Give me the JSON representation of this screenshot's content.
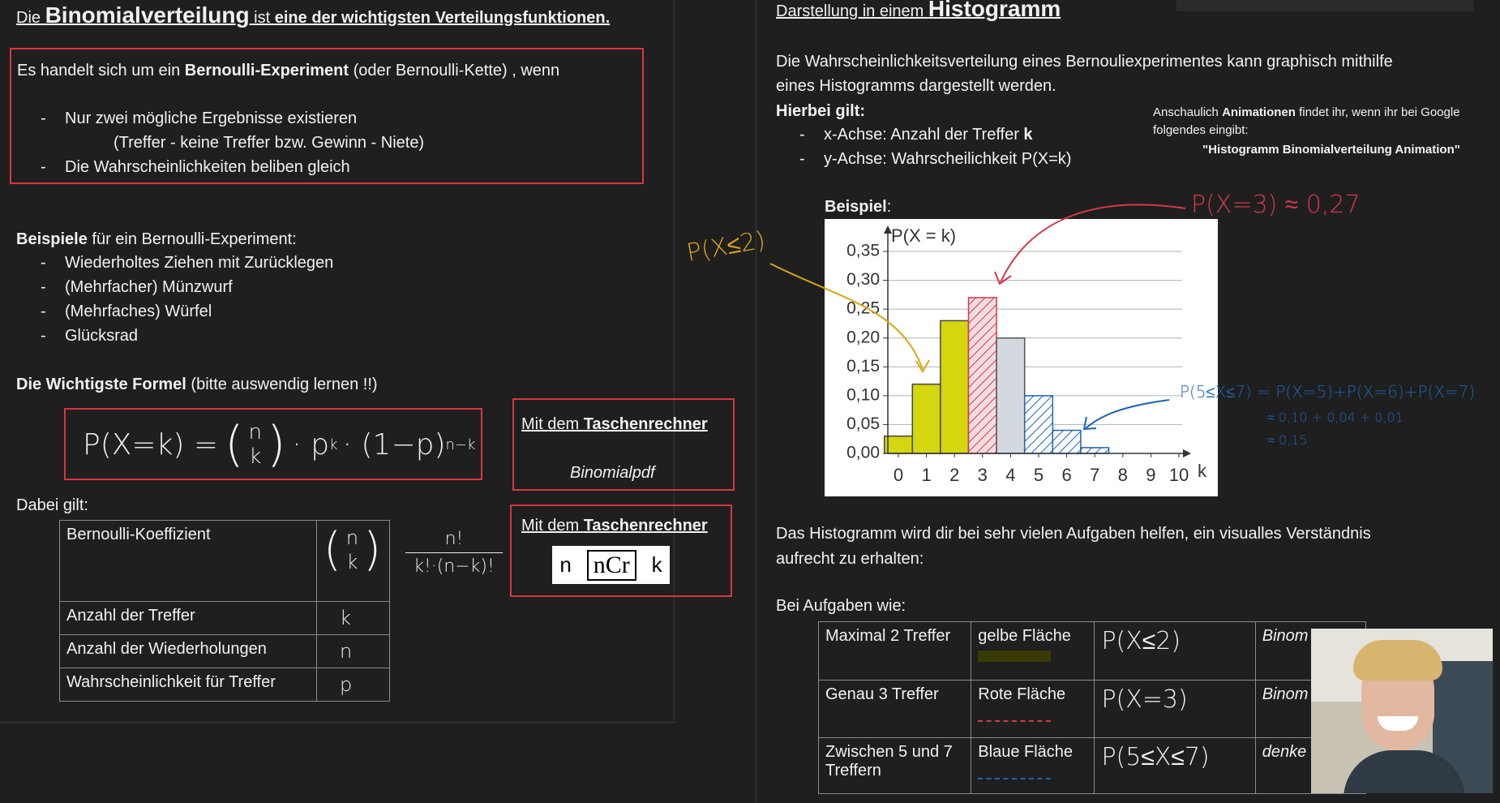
{
  "left": {
    "title": [
      "Die ",
      "Binomialverteilung",
      " ist ",
      "eine der wichtigsten Verteilungsfunktionen."
    ],
    "box": {
      "intro": [
        "Es handelt sich um ein ",
        "Bernoulli-Experiment",
        " (oder Bernoulli-Kette) , wenn"
      ],
      "bullets": [
        "Nur zwei mögliche Ergebnisse existieren",
        "(Treffer - keine Treffer bzw. Gewinn - Niete)",
        "Die Wahrscheinlichkeiten beliben gleich"
      ]
    },
    "examples": {
      "heading": [
        "Beispiele",
        " für ein Bernoulli-Experiment:"
      ],
      "items": [
        "Wiederholtes Ziehen mit Zurücklegen",
        "(Mehrfacher) Münzwurf",
        "(Mehrfaches) Würfel",
        "Glücksrad"
      ]
    },
    "formula_heading": [
      "Die Wichtigste Formel",
      " (bitte auswendig lernen !!)"
    ],
    "formula": {
      "lhs": "P(X=k) =",
      "binom": [
        "n",
        "k"
      ],
      "base": "· p",
      "exp1": "k",
      "factor": "· (1−p)",
      "exp2": "n−k"
    },
    "calc1": {
      "heading": [
        "Mit dem ",
        "Taschenrechner"
      ],
      "function": "Binomialpdf"
    },
    "calc2": {
      "heading": [
        "Mit dem ",
        "Taschenrechner"
      ],
      "keys": [
        "n",
        "nCr",
        "k"
      ]
    },
    "dabei": "Dabei gilt:",
    "table": {
      "rows": [
        {
          "label": "Bernoulli-Koeffizient",
          "symbol": [
            "n",
            "k"
          ]
        },
        {
          "label": "Anzahl der Treffer",
          "symbol": "k"
        },
        {
          "label": "Anzahl der Wiederholungen",
          "symbol": "n"
        },
        {
          "label": "Wahrscheinlichkeit für Treffer",
          "symbol": "p"
        }
      ]
    },
    "fraction": {
      "numerator": "n!",
      "denominator": "k!·(n−k)!"
    }
  },
  "right": {
    "title": [
      "Darstellung in einem ",
      "Histogramm"
    ],
    "paragraph": [
      "Die Wahrscheinlichkeitsverteilung eines Bernouliexperimentes kann graphisch mithilfe",
      "eines Histogramms dargestellt werden."
    ],
    "hierbei": "Hierbei gilt:",
    "bullets": [
      [
        "x-Achse: Anzahl der Treffer ",
        "k"
      ],
      [
        "y-Achse: Wahrscheilichkeit P(X=k)"
      ]
    ],
    "note": [
      "Anschaulich ",
      "Animationen",
      " findet ihr, wenn ihr bei Google",
      "folgendes eingibt:",
      "\"Histogramm Binomialverteilung Animation\""
    ],
    "beispiel": [
      "Beispiel",
      ":"
    ],
    "histogram": {
      "type": "bar",
      "ylabel": "P(X = k)",
      "xlabel": "k",
      "x": [
        0,
        1,
        2,
        3,
        4,
        5,
        6,
        7,
        8,
        9,
        10
      ],
      "values": [
        0.03,
        0.12,
        0.23,
        0.27,
        0.2,
        0.1,
        0.04,
        0.01,
        0,
        0,
        0
      ],
      "colors": [
        "#d4d60e",
        "#d4d60e",
        "#d4d60e",
        "#d33a4a",
        "#d3d9df",
        "#1e63b0",
        "#1e63b0",
        "#1e63b0",
        "#1e63b0",
        "#1e63b0",
        "#1e63b0"
      ],
      "fills": [
        "solid",
        "solid",
        "solid",
        "hatch",
        "solid",
        "hatch",
        "hatch",
        "hatch",
        "hatch",
        "hatch",
        "hatch"
      ],
      "xlim": [
        -0.5,
        10.5
      ],
      "xticks": [
        0,
        1,
        2,
        3,
        4,
        5,
        6,
        7,
        8,
        9,
        10
      ],
      "ylim": [
        0,
        0.35
      ],
      "yticks": [
        {
          "value": 0,
          "label": "0,00"
        },
        {
          "value": 0.05,
          "label": "0,05"
        },
        {
          "value": 0.1,
          "label": "0,10"
        },
        {
          "value": 0.15,
          "label": "0,15"
        },
        {
          "value": 0.2,
          "label": "0,20"
        },
        {
          "value": 0.25,
          "label": "0,25"
        },
        {
          "value": 0.3,
          "label": "0,30"
        },
        {
          "value": 0.35,
          "label": "0,35"
        }
      ],
      "grid": true
    },
    "annotations": {
      "yellow": "P(X≤2)",
      "red": "P(X=3) ≈ 0,27",
      "blue": [
        "P(5≤X≤7) = P(X=5)+P(X=6)+P(X=7)",
        "≈ 0,10 + 0,04 + 0,01",
        "≈ 0,15"
      ]
    },
    "summary": [
      "Das Histogramm wird dir bei sehr vielen Aufgaben helfen,  ein visualles Verständnis",
      "aufrecht zu erhalten:"
    ],
    "aufgaben": "Bei Aufgaben wie:",
    "table": {
      "rows": [
        [
          "Maximal 2 Treffer",
          "gelbe Fläche",
          "P(X≤2)",
          "Binom"
        ],
        [
          "Genau 3 Treffer",
          "Rote Fläche",
          "P(X=3)",
          "Binom"
        ],
        [
          "Zwischen 5 und 7 Treffern",
          "Blaue Fläche",
          "P(5≤X≤7)",
          "denke"
        ]
      ]
    }
  }
}
